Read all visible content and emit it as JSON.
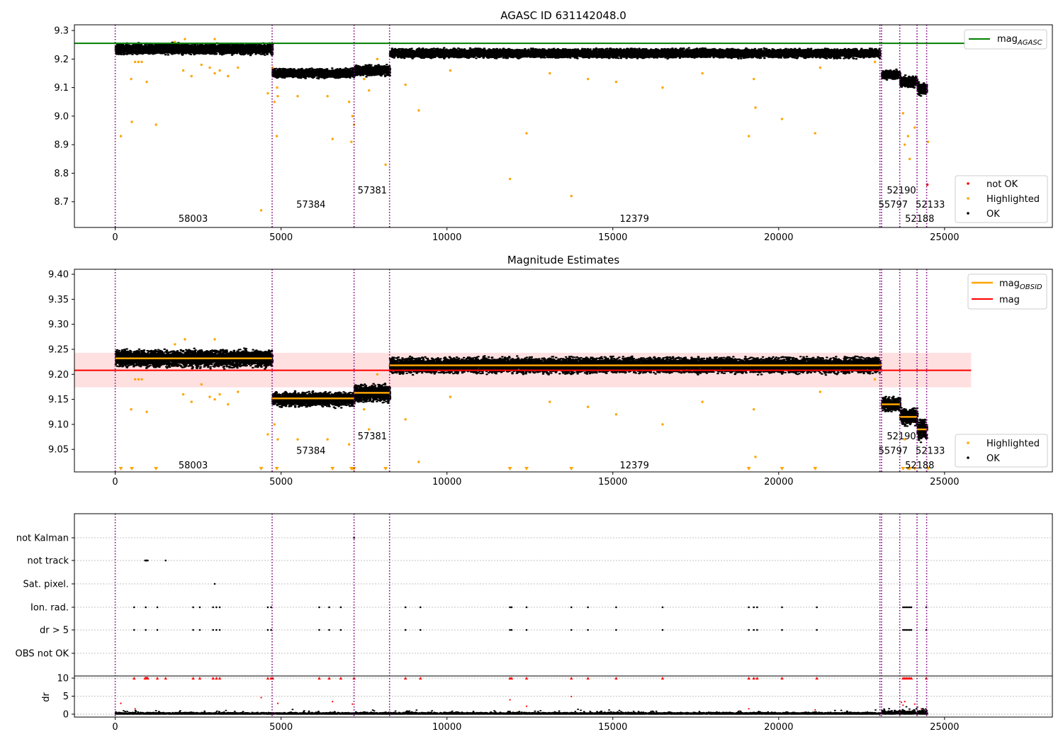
{
  "chart_data": [
    {
      "type": "scatter",
      "title": "AGASC ID 631142048.0",
      "xlim": [
        -1230,
        28250
      ],
      "ylim": [
        8.61,
        9.32
      ],
      "xticks": [
        0,
        5000,
        10000,
        15000,
        20000,
        25000
      ],
      "yticks": [
        8.7,
        8.8,
        8.9,
        9.0,
        9.1,
        9.2,
        9.3
      ],
      "ytick_labels": [
        "8.7",
        "8.8",
        "8.9",
        "9.0",
        "9.1",
        "9.2",
        "9.3"
      ],
      "xtick_labels": [
        "0",
        "5000",
        "10000",
        "15000",
        "20000",
        "25000"
      ],
      "mag_agasc": 9.255,
      "mag_agasc_xmax": 25800,
      "obsid_boundaries": [
        0,
        4730,
        7200,
        8270,
        23050,
        23100,
        23650,
        24170,
        24460
      ],
      "segments": [
        {
          "x0": 0,
          "x1": 4730,
          "level": 9.235,
          "spread": 0.012
        },
        {
          "x0": 4730,
          "x1": 7200,
          "level": 9.15,
          "spread": 0.01
        },
        {
          "x0": 7200,
          "x1": 8270,
          "level": 9.16,
          "spread": 0.012
        },
        {
          "x0": 8270,
          "x1": 23050,
          "level": 9.22,
          "spread": 0.01
        },
        {
          "x0": 23100,
          "x1": 23650,
          "level": 9.145,
          "spread": 0.01
        },
        {
          "x0": 23650,
          "x1": 24170,
          "level": 9.12,
          "spread": 0.012
        },
        {
          "x0": 24170,
          "x1": 24460,
          "level": 9.095,
          "spread": 0.015
        }
      ],
      "obsid_labels": [
        {
          "text": "58003",
          "x": 2350,
          "y": 8.642
        },
        {
          "text": "57384",
          "x": 5900,
          "y": 8.692
        },
        {
          "text": "57381",
          "x": 7750,
          "y": 8.742
        },
        {
          "text": "12379",
          "x": 15650,
          "y": 8.642
        },
        {
          "text": "52190",
          "x": 23700,
          "y": 8.742
        },
        {
          "text": "55797",
          "x": 23450,
          "y": 8.692
        },
        {
          "text": "52133",
          "x": 24570,
          "y": 8.692
        },
        {
          "text": "52188",
          "x": 24250,
          "y": 8.642
        }
      ],
      "highlighted": [
        [
          170,
          8.93
        ],
        [
          500,
          8.98
        ],
        [
          480,
          9.13
        ],
        [
          1230,
          8.97
        ],
        [
          950,
          9.12
        ],
        [
          2050,
          9.16
        ],
        [
          2300,
          9.14
        ],
        [
          2600,
          9.18
        ],
        [
          2850,
          9.17
        ],
        [
          3000,
          9.15
        ],
        [
          3150,
          9.16
        ],
        [
          3400,
          9.14
        ],
        [
          3700,
          9.17
        ],
        [
          4400,
          8.67
        ],
        [
          4600,
          9.08
        ],
        [
          4750,
          9.17
        ],
        [
          4800,
          9.05
        ],
        [
          4870,
          8.93
        ],
        [
          4880,
          9.1
        ],
        [
          4900,
          9.07
        ],
        [
          5500,
          9.07
        ],
        [
          6400,
          9.07
        ],
        [
          6550,
          8.92
        ],
        [
          7050,
          9.05
        ],
        [
          7120,
          8.91
        ],
        [
          7150,
          9.0
        ],
        [
          7200,
          8.97
        ],
        [
          7500,
          9.13
        ],
        [
          7650,
          9.09
        ],
        [
          7900,
          9.2
        ],
        [
          8150,
          8.83
        ],
        [
          8750,
          9.11
        ],
        [
          9150,
          9.02
        ],
        [
          10100,
          9.16
        ],
        [
          11900,
          8.78
        ],
        [
          12400,
          8.94
        ],
        [
          13100,
          9.15
        ],
        [
          13750,
          8.72
        ],
        [
          14250,
          9.13
        ],
        [
          15100,
          9.12
        ],
        [
          16500,
          9.1
        ],
        [
          17700,
          9.15
        ],
        [
          19100,
          8.93
        ],
        [
          19300,
          9.03
        ],
        [
          19250,
          9.13
        ],
        [
          20100,
          8.99
        ],
        [
          21100,
          8.94
        ],
        [
          21250,
          9.17
        ],
        [
          22900,
          9.19
        ],
        [
          23750,
          9.01
        ],
        [
          23900,
          8.93
        ],
        [
          23950,
          8.85
        ],
        [
          23800,
          8.9
        ],
        [
          24100,
          8.96
        ],
        [
          24500,
          8.91
        ],
        [
          600,
          9.19
        ],
        [
          700,
          9.19
        ],
        [
          800,
          9.19
        ],
        [
          2100,
          9.27
        ],
        [
          3000,
          9.27
        ],
        [
          1800,
          9.26
        ]
      ],
      "not_ok": [
        [
          24480,
          8.76
        ]
      ],
      "legend_upper": {
        "position": "upper-right",
        "items": [
          {
            "label": "mag",
            "subscript": "AGASC",
            "color": "#008000"
          }
        ]
      },
      "legend_lower": {
        "position": "lower-right",
        "items": [
          {
            "label": "not OK",
            "color": "#ff0000"
          },
          {
            "label": "Highlighted",
            "color": "#ffa500"
          },
          {
            "label": "OK",
            "color": "#000000"
          }
        ]
      }
    },
    {
      "type": "scatter",
      "title": "Magnitude Estimates",
      "xlim": [
        -1230,
        28250
      ],
      "ylim": [
        9.005,
        9.41
      ],
      "xticks": [
        0,
        5000,
        10000,
        15000,
        20000,
        25000
      ],
      "yticks": [
        9.05,
        9.1,
        9.15,
        9.2,
        9.25,
        9.3,
        9.35,
        9.4
      ],
      "ytick_labels": [
        "9.05",
        "9.10",
        "9.15",
        "9.20",
        "9.25",
        "9.30",
        "9.35",
        "9.40"
      ],
      "xtick_labels": [
        "0",
        "5000",
        "10000",
        "15000",
        "20000",
        "25000"
      ],
      "mag": 9.208,
      "mag_band": [
        9.174,
        9.243
      ],
      "mag_xmax": 25800,
      "obsid_boundaries": [
        0,
        4730,
        7200,
        8270,
        23050,
        23100,
        23650,
        24170,
        24460
      ],
      "obsid_mags": [
        {
          "x0": 0,
          "x1": 4730,
          "mag": 9.232
        },
        {
          "x0": 4730,
          "x1": 7200,
          "mag": 9.152
        },
        {
          "x0": 7200,
          "x1": 8270,
          "mag": 9.163
        },
        {
          "x0": 8270,
          "x1": 23100,
          "mag": 9.218
        },
        {
          "x0": 23100,
          "x1": 23650,
          "mag": 9.14
        },
        {
          "x0": 23650,
          "x1": 24170,
          "mag": 9.115
        },
        {
          "x0": 24170,
          "x1": 24460,
          "mag": 9.09
        }
      ],
      "segments": [
        {
          "x0": 0,
          "x1": 4730,
          "level": 9.232,
          "spread": 0.011
        },
        {
          "x0": 4730,
          "x1": 7200,
          "level": 9.15,
          "spread": 0.009
        },
        {
          "x0": 7200,
          "x1": 8270,
          "level": 9.162,
          "spread": 0.011
        },
        {
          "x0": 8270,
          "x1": 23050,
          "level": 9.218,
          "spread": 0.01
        },
        {
          "x0": 23100,
          "x1": 23650,
          "level": 9.14,
          "spread": 0.009
        },
        {
          "x0": 23650,
          "x1": 24170,
          "level": 9.115,
          "spread": 0.011
        },
        {
          "x0": 24170,
          "x1": 24460,
          "level": 9.09,
          "spread": 0.014
        }
      ],
      "obsid_labels": [
        {
          "text": "58003",
          "x": 2350,
          "y": 9.019
        },
        {
          "text": "57384",
          "x": 5900,
          "y": 9.048
        },
        {
          "text": "57381",
          "x": 7750,
          "y": 9.077
        },
        {
          "text": "12379",
          "x": 15650,
          "y": 9.019
        },
        {
          "text": "52190",
          "x": 23700,
          "y": 9.077
        },
        {
          "text": "55797",
          "x": 23450,
          "y": 9.048
        },
        {
          "text": "52133",
          "x": 24570,
          "y": 9.048
        },
        {
          "text": "52188",
          "x": 24250,
          "y": 9.019
        }
      ],
      "highlighted": [
        [
          480,
          9.13
        ],
        [
          950,
          9.125
        ],
        [
          2050,
          9.16
        ],
        [
          2300,
          9.145
        ],
        [
          2600,
          9.18
        ],
        [
          2850,
          9.155
        ],
        [
          3000,
          9.15
        ],
        [
          3150,
          9.16
        ],
        [
          3400,
          9.14
        ],
        [
          3700,
          9.165
        ],
        [
          4600,
          9.08
        ],
        [
          4800,
          9.1
        ],
        [
          4900,
          9.07
        ],
        [
          5500,
          9.07
        ],
        [
          6400,
          9.07
        ],
        [
          7050,
          9.06
        ],
        [
          7500,
          9.13
        ],
        [
          7650,
          9.09
        ],
        [
          7900,
          9.2
        ],
        [
          8750,
          9.11
        ],
        [
          9150,
          9.025
        ],
        [
          10100,
          9.155
        ],
        [
          13100,
          9.145
        ],
        [
          14250,
          9.135
        ],
        [
          15100,
          9.12
        ],
        [
          16500,
          9.1
        ],
        [
          17700,
          9.145
        ],
        [
          19300,
          9.035
        ],
        [
          19250,
          9.13
        ],
        [
          21250,
          9.165
        ],
        [
          22900,
          9.19
        ],
        [
          23800,
          9.07
        ],
        [
          600,
          9.19
        ],
        [
          700,
          9.19
        ],
        [
          800,
          9.19
        ],
        [
          2100,
          9.27
        ],
        [
          3000,
          9.27
        ],
        [
          1800,
          9.26
        ]
      ],
      "offscale_low": [
        170,
        500,
        1230,
        4400,
        4870,
        6550,
        7120,
        7150,
        7200,
        8150,
        11900,
        12400,
        13750,
        19100,
        20100,
        21100,
        23750,
        23900,
        23950,
        24100,
        24500
      ],
      "legend_upper": {
        "position": "upper-right",
        "items": [
          {
            "label": "mag",
            "subscript": "OBSID",
            "color": "#ffa500"
          },
          {
            "label": "mag",
            "color": "#ff0000"
          }
        ]
      },
      "legend_lower": {
        "position": "lower-right",
        "items": [
          {
            "label": "Highlighted",
            "color": "#ffa500"
          },
          {
            "label": "OK",
            "color": "#000000"
          }
        ]
      }
    },
    {
      "type": "scatter",
      "title": "",
      "xlim": [
        -1230,
        28250
      ],
      "xticks": [
        0,
        5000,
        10000,
        15000,
        20000,
        25000
      ],
      "xtick_labels": [
        "0",
        "5000",
        "10000",
        "15000",
        "20000",
        "25000"
      ],
      "flag_categories": [
        "not Kalman",
        "not track",
        "Sat. pixel.",
        "Ion. rad.",
        "dr > 5",
        "OBS not OK"
      ],
      "obsid_boundaries": [
        0,
        4730,
        7200,
        8270,
        23050,
        23100,
        23650,
        24170,
        24460
      ],
      "flags": {
        "not Kalman": [
          7200
        ],
        "not track": [
          900,
          920,
          940,
          960,
          980,
          1520
        ],
        "Sat. pixel.": [
          3000
        ],
        "Ion. rad.": [
          570,
          920,
          1270,
          2350,
          2550,
          2950,
          3050,
          3150,
          4600,
          4700,
          6150,
          6450,
          6800,
          8750,
          9200,
          11900,
          11950,
          12400,
          13750,
          14250,
          15100,
          16500,
          19100,
          19250,
          19350,
          20100,
          21150,
          23750,
          23800,
          23850,
          23900,
          23950,
          24000,
          24450
        ],
        "dr > 5": [
          570,
          920,
          1270,
          2350,
          2550,
          2950,
          3050,
          3150,
          4600,
          4700,
          6150,
          6450,
          6800,
          8750,
          9200,
          11900,
          11950,
          12400,
          13750,
          14250,
          15100,
          16500,
          19100,
          19250,
          19350,
          20100,
          21150,
          23750,
          23800,
          23850,
          23900,
          23950,
          24000,
          24450
        ],
        "OBS not OK": []
      },
      "dr_panel": {
        "ylabel": "dr",
        "ylim": [
          -0.8,
          10.2
        ],
        "yticks": [
          0,
          5,
          10
        ],
        "ytick_labels": [
          "0",
          "5",
          "10"
        ],
        "clipped_x": [
          570,
          900,
          920,
          940,
          960,
          980,
          1270,
          1520,
          2350,
          2550,
          2950,
          3050,
          3150,
          4600,
          4700,
          4750,
          6150,
          6450,
          6800,
          7200,
          8750,
          9200,
          11900,
          11950,
          12400,
          13750,
          14250,
          15100,
          16500,
          19100,
          19250,
          19350,
          20100,
          21150,
          23750,
          23800,
          23850,
          23900,
          23950,
          24000,
          24450
        ],
        "scattered": [
          [
            170,
            3.0
          ],
          [
            600,
            1.5
          ],
          [
            4400,
            4.6
          ],
          [
            4900,
            3.0
          ],
          [
            6550,
            3.5
          ],
          [
            7150,
            2.8
          ],
          [
            11900,
            4.0
          ],
          [
            12400,
            2.2
          ],
          [
            13750,
            4.9
          ],
          [
            19100,
            1.5
          ],
          [
            21100,
            1.2
          ],
          [
            23700,
            3.3
          ],
          [
            23750,
            2.5
          ],
          [
            23800,
            3.5
          ],
          [
            24100,
            2.8
          ],
          [
            24300,
            1.5
          ]
        ]
      }
    }
  ]
}
